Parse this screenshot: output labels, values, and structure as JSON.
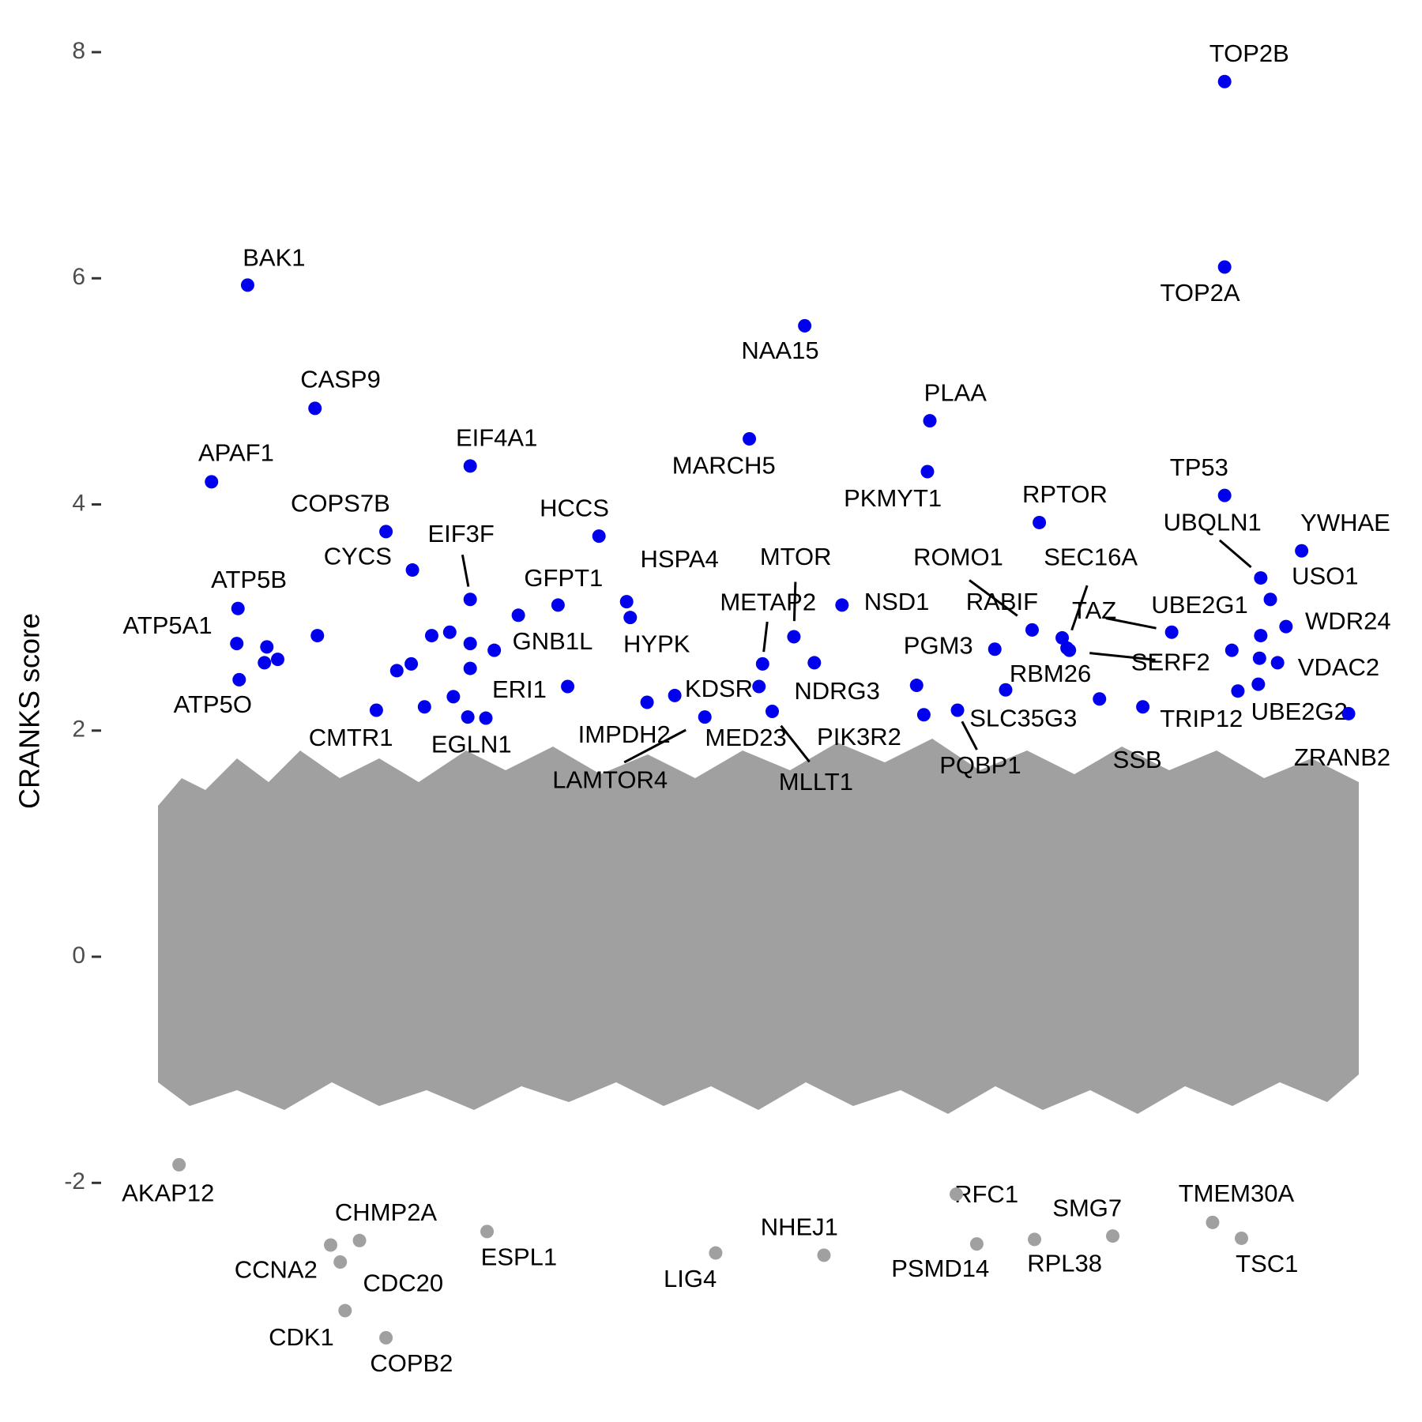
{
  "chart_data": {
    "type": "scatter",
    "ylabel": "CRANKS score",
    "xlim": [
      0,
      100
    ],
    "ylim": [
      -3.5,
      8.2
    ],
    "yticks": [
      -2,
      0,
      2,
      4,
      6,
      8
    ],
    "grid": false,
    "series": [
      {
        "color": "#0000ee",
        "labels": [
          "TOP2B",
          "TOP2A",
          "BAK1",
          "NAA15",
          "CASP9",
          "PLAA",
          "MARCH5",
          "EIF4A1",
          "PKMYT1",
          "APAF1",
          "TP53",
          "RPTOR",
          "COPS7B",
          "HCCS",
          "YWHAE",
          "CYCS",
          "UBQLN1",
          "USO1",
          "EIF3F",
          "GFPT1",
          "HSPA4",
          "NSD1",
          "ATP5B",
          "HYPK",
          "WDR24",
          "MTOR",
          "ROMO1",
          "RABIF",
          "TAZ",
          "UBE2G1",
          "SEC16A",
          "SERF2",
          "PGM3",
          "ATP5A1",
          "GNB1L",
          "VDAC2",
          "NDRG3",
          "METAP2",
          "ATP5O",
          "KDSR",
          "ERI1",
          "RBM26",
          "TRIP12",
          "UBE2G2",
          "SLC35G3",
          "IMPDH2",
          "SSB",
          "CMTR1",
          "MED23",
          "LAMTOR4",
          "MLLT1",
          "PIK3R2",
          "EGLN1",
          "PQBP1",
          "ZRANB2",
          null,
          null,
          null,
          null,
          null,
          null,
          null,
          null,
          null,
          null,
          null,
          null,
          null,
          null,
          null,
          null,
          null
        ],
        "x": [
          88.9,
          88.9,
          7.7,
          54.0,
          13.3,
          64.4,
          49.4,
          26.2,
          64.2,
          4.7,
          88.9,
          73.5,
          19.2,
          36.9,
          95.3,
          21.4,
          91.9,
          92.7,
          26.2,
          33.5,
          39.2,
          57.1,
          6.9,
          39.5,
          94.0,
          53.1,
          72.9,
          75.4,
          84.5,
          91.9,
          75.8,
          76.0,
          69.8,
          6.8,
          28.2,
          93.3,
          54.8,
          50.5,
          7.0,
          50.2,
          34.3,
          70.7,
          90.0,
          91.7,
          63.3,
          40.9,
          82.1,
          18.4,
          43.2,
          45.7,
          51.3,
          63.9,
          26.0,
          66.7,
          99.2,
          9.3,
          9.1,
          10.2,
          13.5,
          20.1,
          21.3,
          23.0,
          24.5,
          26.2,
          26.2,
          30.2,
          22.4,
          24.8,
          27.5,
          89.5,
          91.8,
          78.5
        ],
        "values": [
          7.74,
          6.1,
          5.94,
          5.58,
          4.85,
          4.74,
          4.58,
          4.34,
          4.29,
          4.2,
          4.08,
          3.84,
          3.76,
          3.72,
          3.59,
          3.42,
          3.35,
          3.16,
          3.16,
          3.11,
          3.14,
          3.11,
          3.08,
          3.0,
          2.92,
          2.83,
          2.89,
          2.82,
          2.87,
          2.84,
          2.73,
          2.71,
          2.72,
          2.77,
          2.71,
          2.6,
          2.6,
          2.59,
          2.45,
          2.39,
          2.39,
          2.36,
          2.35,
          2.41,
          2.4,
          2.25,
          2.21,
          2.18,
          2.31,
          2.12,
          2.17,
          2.14,
          2.12,
          2.18,
          2.15,
          2.74,
          2.6,
          2.63,
          2.84,
          2.53,
          2.59,
          2.84,
          2.87,
          2.77,
          2.55,
          3.02,
          2.21,
          2.3,
          2.11,
          2.71,
          2.64,
          2.28
        ]
      },
      {
        "color": "#a0a0a0",
        "labels": [
          "AKAP12",
          "CHMP2A",
          "CCNA2",
          "CDC20",
          "CDK1",
          "COPB2",
          "ESPL1",
          "LIG4",
          "NHEJ1",
          "PSMD14",
          "RFC1",
          "SMG7",
          "RPL38",
          "TMEM30A",
          "TSC1"
        ],
        "x": [
          2.0,
          17.0,
          14.6,
          15.4,
          15.8,
          19.2,
          27.6,
          46.6,
          55.6,
          68.3,
          66.6,
          79.6,
          73.1,
          87.9,
          90.3
        ],
        "values": [
          -1.84,
          -2.51,
          -2.55,
          -2.7,
          -3.13,
          -3.37,
          -2.43,
          -2.62,
          -2.64,
          -2.54,
          -2.1,
          -2.47,
          -2.5,
          -2.35,
          -2.49
        ]
      }
    ]
  }
}
